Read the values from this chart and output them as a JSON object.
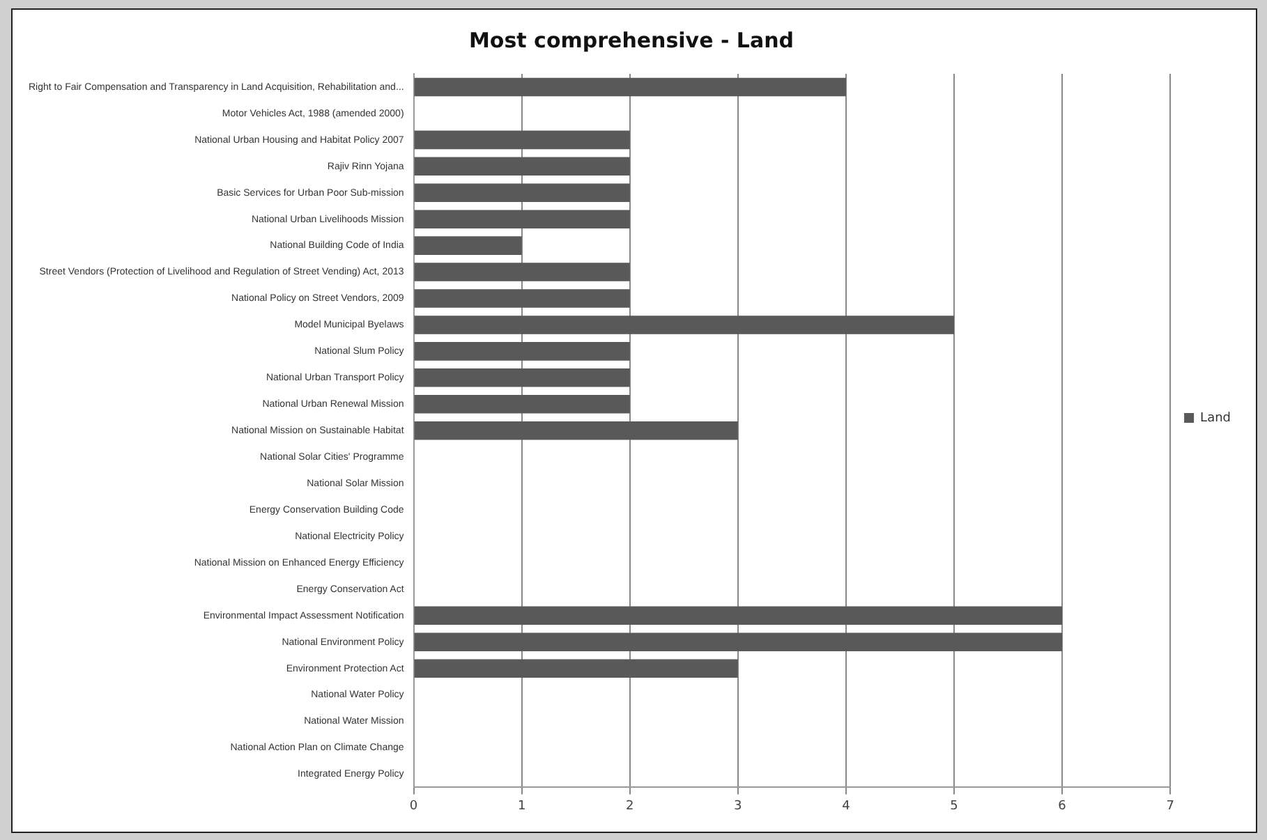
{
  "chart_data": {
    "type": "bar",
    "orientation": "horizontal",
    "title": "Most comprehensive - Land",
    "categories": [
      "Right to Fair Compensation and Transparency in Land Acquisition, Rehabilitation and...",
      "Motor Vehicles Act, 1988 (amended 2000)",
      "National Urban Housing and Habitat Policy 2007",
      "Rajiv Rinn Yojana",
      "Basic Services for Urban Poor Sub-mission",
      "National Urban Livelihoods Mission",
      "National Building Code of India",
      "Street Vendors (Protection of Livelihood and Regulation of Street Vending) Act, 2013",
      "National Policy on Street Vendors, 2009",
      "Model Municipal Byelaws",
      "National Slum Policy",
      "National Urban Transport Policy",
      "National Urban Renewal Mission",
      "National Mission on Sustainable Habitat",
      "National Solar Cities' Programme",
      "National Solar Mission",
      "Energy Conservation Building Code",
      "National Electricity Policy",
      "National Mission on Enhanced Energy Efficiency",
      "Energy Conservation Act",
      "Environmental Impact Assessment Notification",
      "National Environment Policy",
      "Environment Protection Act",
      "National Water Policy",
      "National Water Mission",
      "National Action Plan on Climate Change",
      "Integrated Energy Policy"
    ],
    "series": [
      {
        "name": "Land",
        "color": "#595959",
        "values": [
          4,
          0,
          2,
          2,
          2,
          2,
          1,
          2,
          2,
          5,
          2,
          2,
          2,
          3,
          0,
          0,
          0,
          0,
          0,
          0,
          6,
          6,
          3,
          0,
          0,
          0,
          0
        ]
      }
    ],
    "xlim": [
      0,
      7
    ],
    "xticks": [
      0,
      1,
      2,
      3,
      4,
      5,
      6,
      7
    ],
    "grid": "x",
    "legend": "right"
  }
}
